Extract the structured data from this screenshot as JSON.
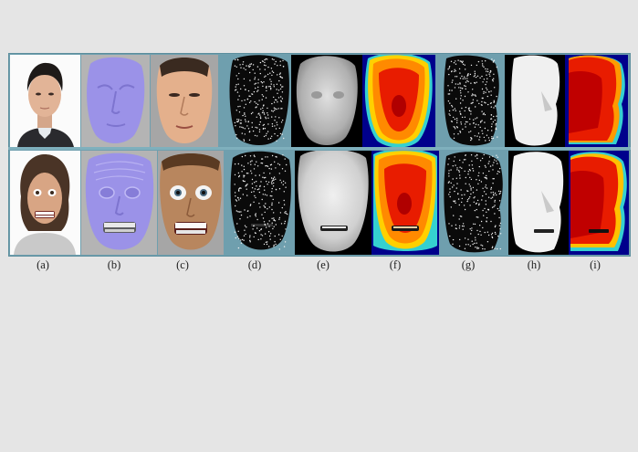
{
  "figure": {
    "panel_labels": [
      "(a)",
      "(b)",
      "(c)",
      "(d)",
      "(e)",
      "(f)",
      "(g)",
      "(h)",
      "(i)"
    ],
    "colors": {
      "strip_background": "#6f9fae",
      "page_background": "#e5e5e5",
      "mesh_color": "#9b92e8",
      "depth_hot_red": "#e81c00",
      "depth_hot_yellow": "#ffd000",
      "depth_background_blue": "#00008c"
    },
    "rows": [
      {
        "row": "top",
        "subject": "neutral-expression-male"
      },
      {
        "row": "bottom",
        "subject": "surprised-expression-female"
      }
    ]
  }
}
